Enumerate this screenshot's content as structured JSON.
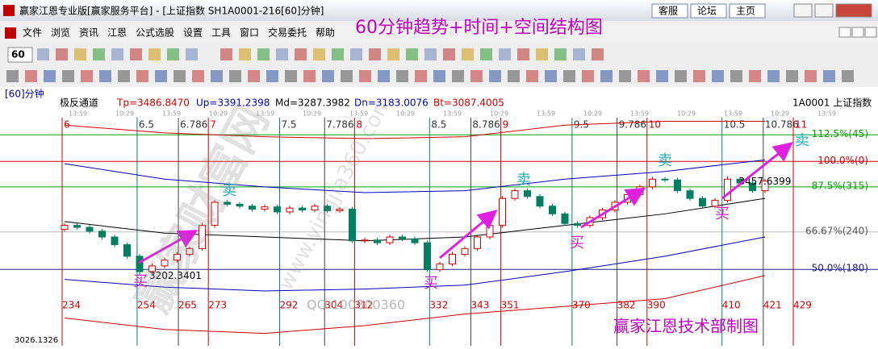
{
  "window": {
    "title": "赢家江恩专业版[赢家服务平台] - [上证指数  SH1A0001-216[60]分钟]",
    "buttons": [
      "客服",
      "论坛",
      "主页"
    ]
  },
  "menu": [
    "文件",
    "浏览",
    "资讯",
    "江恩",
    "公式选股",
    "设置",
    "工具",
    "窗口",
    "交易委托",
    "帮助"
  ],
  "toolbar": {
    "period": "60"
  },
  "overlay_title": "60分钟趋势+时间+空间结构图",
  "footer": "赢家江恩技术部制图",
  "watermarks": [
    "赢家财富网",
    "www.yingjia360.com",
    "QQ:100800360"
  ],
  "chart_data": {
    "type": "candlestick",
    "period_label": "[60]分钟",
    "indicator": "极反通道",
    "params": [
      {
        "text": "Tp=3486.8470",
        "color": "#d00000"
      },
      {
        "text": "Up=3391.2398",
        "color": "#0000c0"
      },
      {
        "text": "Md=3287.3982",
        "color": "#000000"
      },
      {
        "text": "Dn=3183.0076",
        "color": "#0000c0"
      },
      {
        "text": "Bt=3087.4005",
        "color": "#d00000"
      }
    ],
    "symbol": "1A0001  上证指数",
    "time_strip": [
      "13:59",
      "10:29",
      "13:59",
      "10:29",
      "13:59",
      "10:29",
      "13:59",
      "10:29",
      "13:59",
      "10:29",
      "13:59",
      "10:29",
      "13:59",
      "10:29",
      "13:59",
      "10:29",
      "13:59"
    ],
    "ylim": [
      3026.1326,
      3622
    ],
    "min_label": "3026.1326",
    "high_label": "3457.6399",
    "low_label": "3202.3401",
    "buy_label": "买",
    "sell_label": "卖",
    "open": [
      3320,
      3330,
      3325,
      3315,
      3300,
      3280,
      3250,
      3210,
      3225,
      3240,
      3255,
      3270,
      3330,
      3390,
      3385,
      3380,
      3372,
      3378,
      3365,
      3375,
      3370,
      3380,
      3368,
      3372,
      3290,
      3292,
      3285,
      3300,
      3295,
      3285,
      3215,
      3230,
      3255,
      3270,
      3300,
      3330,
      3400,
      3420,
      3405,
      3380,
      3360,
      3335,
      3330,
      3350,
      3370,
      3390,
      3410,
      3430,
      3450,
      3448,
      3420,
      3400,
      3380,
      3395,
      3450,
      3440,
      3420
    ],
    "high": [
      3336,
      3336,
      3331,
      3321,
      3306,
      3286,
      3256,
      3231,
      3246,
      3261,
      3276,
      3336,
      3396,
      3396,
      3391,
      3386,
      3384,
      3384,
      3381,
      3381,
      3386,
      3386,
      3378,
      3378,
      3298,
      3298,
      3306,
      3306,
      3301,
      3291,
      3236,
      3261,
      3276,
      3306,
      3336,
      3406,
      3426,
      3426,
      3411,
      3386,
      3366,
      3341,
      3356,
      3376,
      3396,
      3416,
      3436,
      3456,
      3456,
      3454,
      3426,
      3406,
      3401,
      3457.6399,
      3456,
      3446,
      3451
    ],
    "low": [
      3314,
      3319,
      3309,
      3294,
      3274,
      3244,
      3202.3401,
      3204,
      3219,
      3234,
      3249,
      3264,
      3324,
      3379,
      3374,
      3366,
      3366,
      3359,
      3359,
      3364,
      3364,
      3362,
      3362,
      3284,
      3284,
      3279,
      3279,
      3289,
      3279,
      3209,
      3209,
      3224,
      3249,
      3264,
      3294,
      3324,
      3394,
      3399,
      3374,
      3354,
      3329,
      3324,
      3324,
      3344,
      3364,
      3384,
      3404,
      3424,
      3442,
      3414,
      3394,
      3374,
      3374,
      3389,
      3434,
      3414,
      3414
    ],
    "close": [
      3330,
      3325,
      3315,
      3300,
      3280,
      3250,
      3210,
      3225,
      3240,
      3255,
      3270,
      3330,
      3390,
      3385,
      3380,
      3372,
      3378,
      3365,
      3375,
      3370,
      3380,
      3368,
      3372,
      3290,
      3292,
      3285,
      3300,
      3295,
      3285,
      3215,
      3230,
      3255,
      3270,
      3300,
      3330,
      3400,
      3420,
      3405,
      3380,
      3360,
      3335,
      3330,
      3350,
      3370,
      3390,
      3410,
      3430,
      3450,
      3448,
      3420,
      3400,
      3380,
      3395,
      3450,
      3440,
      3420,
      3445
    ],
    "up_color": "#d00000",
    "down_color": "#008060",
    "channels": [
      {
        "color": "#d00000",
        "values": [
          3590,
          3570,
          3560,
          3555,
          3560,
          3590,
          3600,
          3600
        ]
      },
      {
        "color": "#0000c0",
        "values": [
          3490,
          3450,
          3430,
          3415,
          3420,
          3450,
          3470,
          3500
        ]
      },
      {
        "color": "#000000",
        "values": [
          3340,
          3310,
          3300,
          3290,
          3300,
          3330,
          3360,
          3400
        ]
      },
      {
        "color": "#0000c0",
        "values": [
          3190,
          3170,
          3160,
          3165,
          3175,
          3210,
          3250,
          3300
        ]
      },
      {
        "color": "#d00000",
        "values": [
          3090,
          3060,
          3050,
          3070,
          3100,
          3120,
          3140,
          3200
        ]
      }
    ],
    "levels": [
      {
        "label": "112.5%(45)",
        "value": 3565,
        "color": "#00a000"
      },
      {
        "label": "100.0%(0)",
        "value": 3496,
        "color": "#d00000"
      },
      {
        "label": "87.5%(315)",
        "value": 3430,
        "color": "#00a000"
      },
      {
        "label": "66.67%(240)",
        "value": 3313,
        "color": "#bbbbbb"
      },
      {
        "label": "50.0%(180)",
        "value": 3216,
        "color": "#202080"
      }
    ],
    "time_xlim": [
      234,
      429
    ],
    "time_lines": [
      {
        "top": "6",
        "bottom": 234,
        "color": "#d00000"
      },
      {
        "top": "6.5",
        "bottom": 254,
        "color": "#008080"
      },
      {
        "top": "6.786",
        "bottom": 265,
        "color": "#404040"
      },
      {
        "top": "7",
        "bottom": 273,
        "color": "#d00000"
      },
      {
        "top": "7.5",
        "bottom": 292,
        "color": "#008080"
      },
      {
        "top": "7.786",
        "bottom": 304,
        "color": "#404040"
      },
      {
        "top": "8",
        "bottom": 312,
        "color": "#d00000"
      },
      {
        "top": "8.5",
        "bottom": 332,
        "color": "#008080"
      },
      {
        "top": "8.786",
        "bottom": 343,
        "color": "#404040"
      },
      {
        "top": "9",
        "bottom": 351,
        "color": "#d00000"
      },
      {
        "top": "9.5",
        "bottom": 370,
        "color": "#008080"
      },
      {
        "top": "9.786",
        "bottom": 382,
        "color": "#404040"
      },
      {
        "top": "10",
        "bottom": 390,
        "color": "#d00000"
      },
      {
        "top": "10.5",
        "bottom": 410,
        "color": "#008080"
      },
      {
        "top": "10.786",
        "bottom": 421,
        "color": "#404040"
      },
      {
        "top": "11",
        "bottom": 429,
        "color": "#d00000"
      }
    ]
  }
}
